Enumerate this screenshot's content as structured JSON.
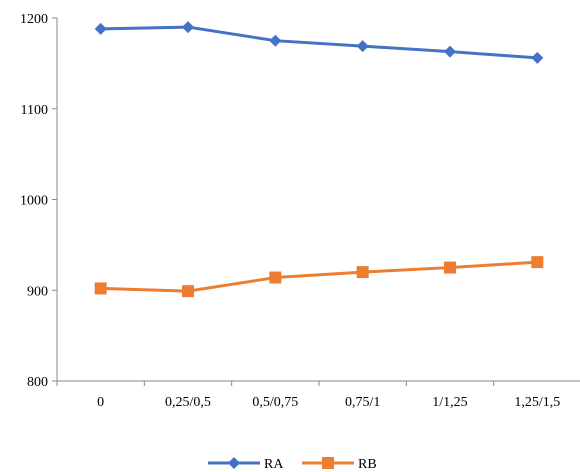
{
  "chart_data": {
    "type": "line",
    "title": "",
    "xlabel": "",
    "ylabel": "",
    "categories": [
      "0",
      "0,25/0,5",
      "0,5/0,75",
      "0,75/1",
      "1/1,25",
      "1,25/1,5"
    ],
    "ylim": [
      800,
      1200
    ],
    "yticks": [
      "800",
      "900",
      "1000",
      "1100",
      "1200"
    ],
    "grid": false,
    "legend_position": "bottom",
    "series": [
      {
        "name": "RA",
        "values": [
          1188,
          1190,
          1175,
          1169,
          1163,
          1156
        ],
        "color": "#4472C4",
        "marker": "diamond"
      },
      {
        "name": "RB",
        "values": [
          902,
          899,
          914,
          920,
          925,
          931
        ],
        "color": "#ED7D31",
        "marker": "square"
      }
    ]
  }
}
